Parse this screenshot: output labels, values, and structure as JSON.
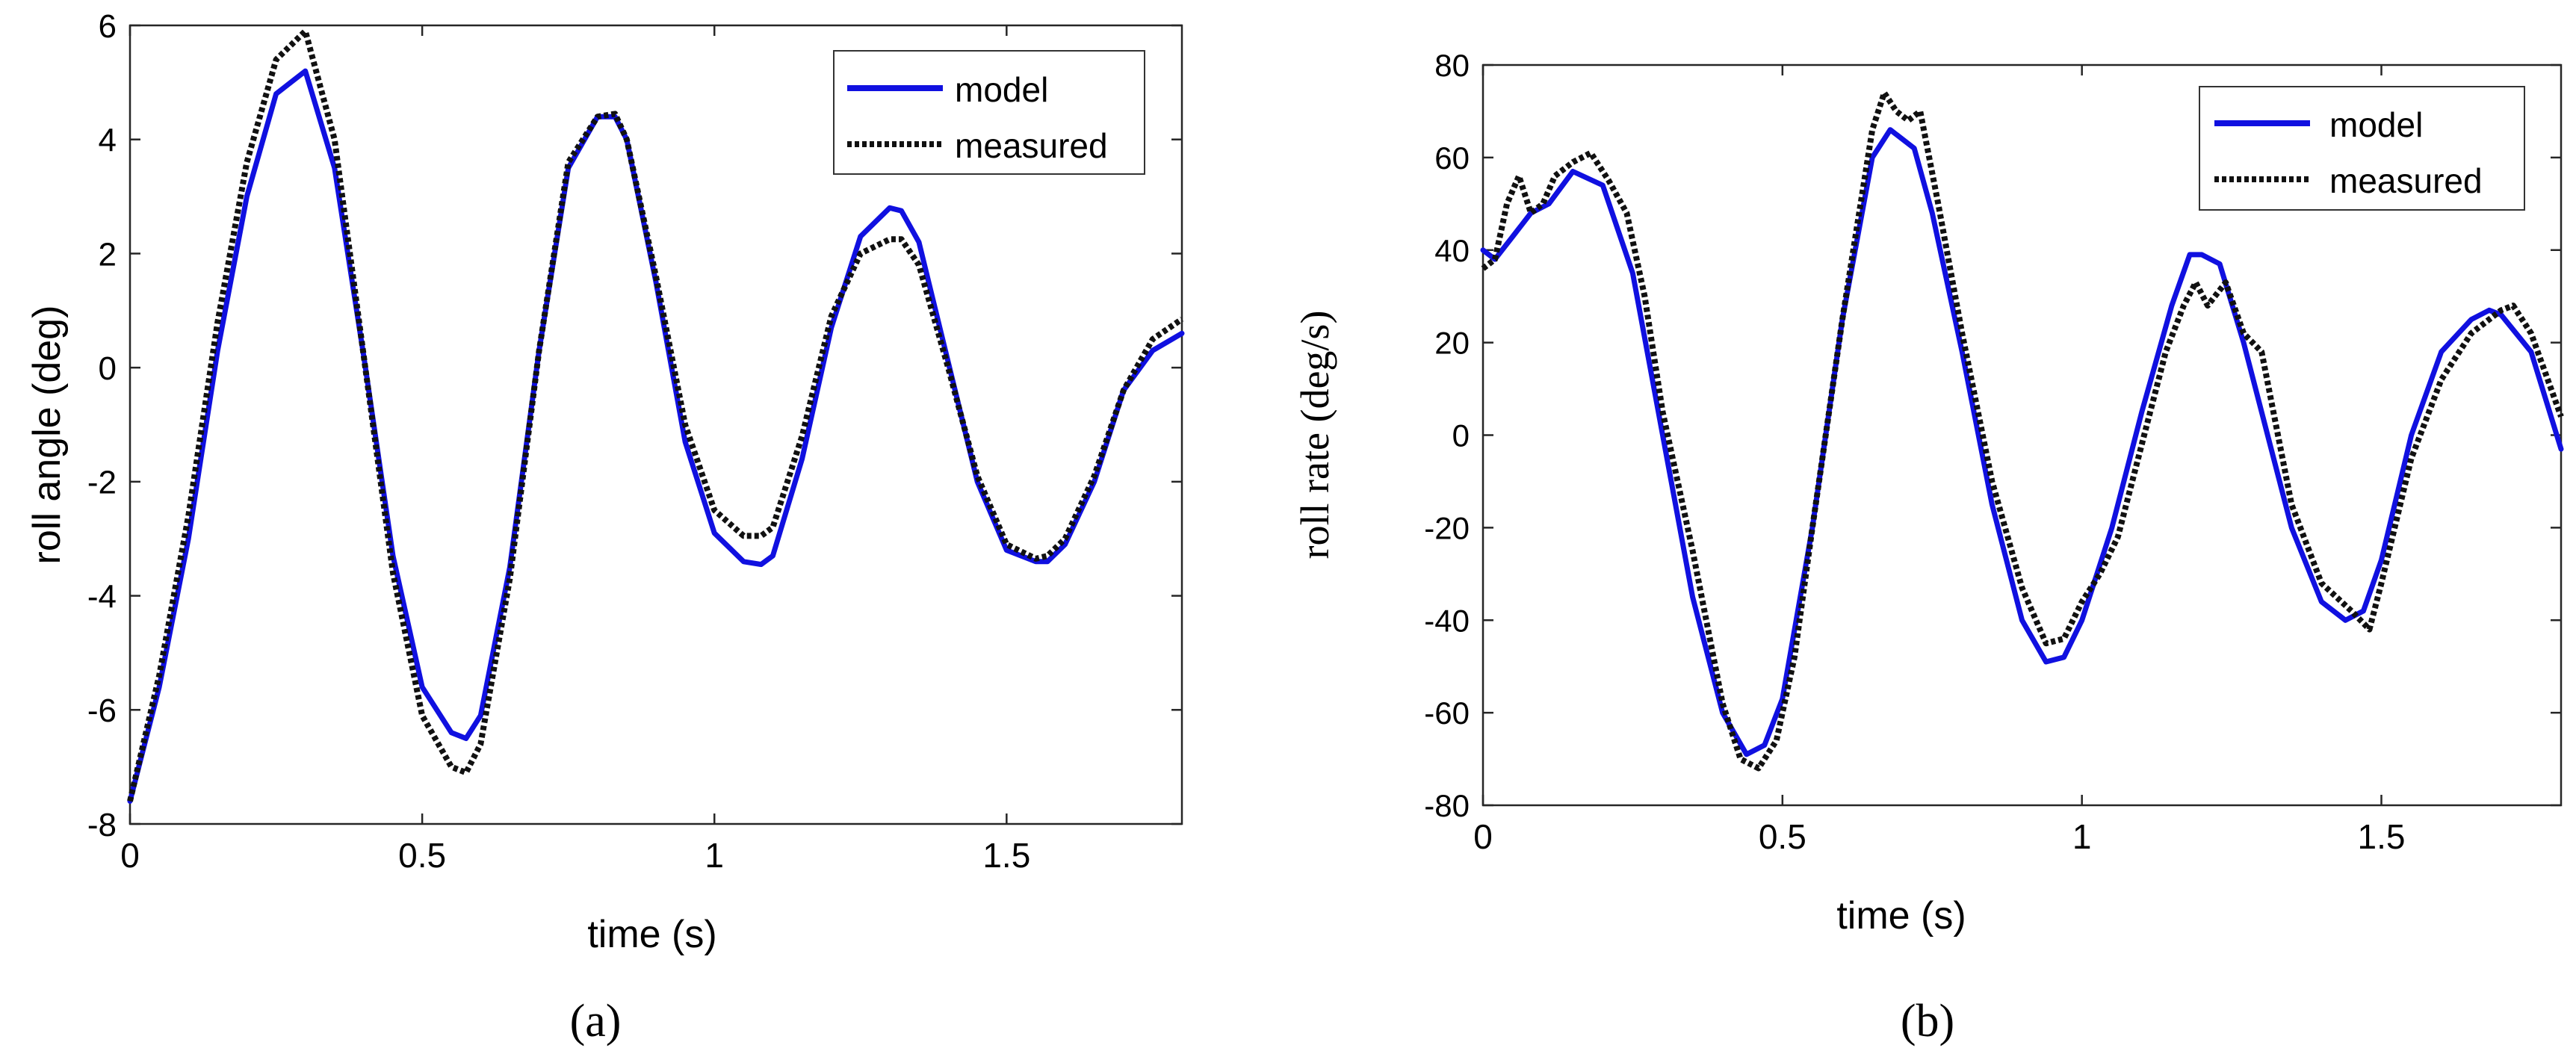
{
  "figure": {
    "panel_a_label": "(a)",
    "panel_b_label": "(b)"
  },
  "chart_data": [
    {
      "type": "line",
      "panel": "a",
      "title": "",
      "xlabel": "time (s)",
      "ylabel": "roll angle (deg)",
      "xlim": [
        0,
        1.8
      ],
      "ylim": [
        -8,
        6
      ],
      "xticks": [
        0,
        0.5,
        1,
        1.5
      ],
      "xtick_labels": [
        "0",
        "0.5",
        "1",
        "1.5"
      ],
      "yticks": [
        -8,
        -6,
        -4,
        -2,
        0,
        2,
        4,
        6
      ],
      "ytick_labels": [
        "-8",
        "-6",
        "-4",
        "-2",
        "0",
        "2",
        "4",
        "6"
      ],
      "grid": false,
      "legend": "top-right",
      "series": [
        {
          "name": "model",
          "color": "#1010e0",
          "style": "solid",
          "x": [
            0,
            0.05,
            0.1,
            0.15,
            0.2,
            0.25,
            0.3,
            0.35,
            0.4,
            0.45,
            0.5,
            0.55,
            0.575,
            0.6,
            0.65,
            0.7,
            0.75,
            0.8,
            0.83,
            0.85,
            0.9,
            0.95,
            1.0,
            1.05,
            1.08,
            1.1,
            1.15,
            1.2,
            1.25,
            1.3,
            1.32,
            1.35,
            1.4,
            1.45,
            1.5,
            1.55,
            1.57,
            1.6,
            1.65,
            1.7,
            1.75,
            1.8
          ],
          "y": [
            -7.6,
            -5.6,
            -3.0,
            0.3,
            3.0,
            4.8,
            5.2,
            3.5,
            0.2,
            -3.3,
            -5.6,
            -6.4,
            -6.5,
            -6.1,
            -3.5,
            0.3,
            3.5,
            4.4,
            4.4,
            4.0,
            1.5,
            -1.3,
            -2.9,
            -3.4,
            -3.45,
            -3.3,
            -1.6,
            0.7,
            2.3,
            2.8,
            2.75,
            2.2,
            0.1,
            -2.0,
            -3.2,
            -3.4,
            -3.4,
            -3.1,
            -2.0,
            -0.4,
            0.3,
            0.6
          ]
        },
        {
          "name": "measured",
          "color": "#111111",
          "style": "dotted",
          "x": [
            0,
            0.05,
            0.1,
            0.15,
            0.2,
            0.25,
            0.3,
            0.35,
            0.4,
            0.45,
            0.5,
            0.55,
            0.575,
            0.6,
            0.65,
            0.7,
            0.75,
            0.8,
            0.83,
            0.85,
            0.9,
            0.95,
            1.0,
            1.05,
            1.08,
            1.1,
            1.15,
            1.2,
            1.25,
            1.3,
            1.32,
            1.35,
            1.4,
            1.45,
            1.5,
            1.55,
            1.57,
            1.6,
            1.65,
            1.7,
            1.75,
            1.8
          ],
          "y": [
            -7.6,
            -5.4,
            -2.6,
            0.8,
            3.6,
            5.4,
            5.9,
            4.0,
            0.2,
            -3.6,
            -6.1,
            -7.0,
            -7.1,
            -6.6,
            -3.7,
            0.3,
            3.6,
            4.4,
            4.45,
            4.0,
            1.6,
            -1.0,
            -2.5,
            -2.95,
            -2.95,
            -2.8,
            -1.2,
            0.9,
            2.0,
            2.25,
            2.25,
            1.8,
            0.0,
            -1.9,
            -3.1,
            -3.35,
            -3.3,
            -3.0,
            -1.9,
            -0.4,
            0.5,
            0.85
          ]
        }
      ]
    },
    {
      "type": "line",
      "panel": "b",
      "title": "",
      "xlabel": "time (s)",
      "ylabel": "roll rate (deg/s)",
      "xlim": [
        0,
        1.8
      ],
      "ylim": [
        -80,
        80
      ],
      "xticks": [
        0,
        0.5,
        1,
        1.5
      ],
      "xtick_labels": [
        "0",
        "0.5",
        "1",
        "1.5"
      ],
      "yticks": [
        -80,
        -60,
        -40,
        -20,
        0,
        20,
        40,
        60,
        80
      ],
      "ytick_labels": [
        "-80",
        "-60",
        "-40",
        "-20",
        "0",
        "20",
        "40",
        "60",
        "80"
      ],
      "grid": false,
      "legend": "top-right",
      "series": [
        {
          "name": "model",
          "color": "#1010e0",
          "style": "solid",
          "x": [
            0,
            0.02,
            0.05,
            0.08,
            0.11,
            0.15,
            0.2,
            0.25,
            0.3,
            0.35,
            0.4,
            0.44,
            0.47,
            0.5,
            0.55,
            0.6,
            0.65,
            0.68,
            0.72,
            0.75,
            0.8,
            0.85,
            0.9,
            0.94,
            0.97,
            1.0,
            1.05,
            1.1,
            1.15,
            1.18,
            1.2,
            1.23,
            1.27,
            1.3,
            1.35,
            1.4,
            1.44,
            1.47,
            1.5,
            1.55,
            1.6,
            1.65,
            1.68,
            1.7,
            1.75,
            1.8
          ],
          "y": [
            40,
            38,
            43,
            48,
            50,
            57,
            54,
            35,
            0,
            -35,
            -60,
            -69,
            -67,
            -57,
            -20,
            25,
            60,
            66,
            62,
            48,
            18,
            -15,
            -40,
            -49,
            -48,
            -40,
            -20,
            5,
            28,
            39,
            39,
            37,
            20,
            5,
            -20,
            -36,
            -40,
            -38,
            -27,
            0,
            18,
            25,
            27,
            26,
            18,
            -3
          ]
        },
        {
          "name": "measured",
          "color": "#111111",
          "style": "dotted",
          "x": [
            0,
            0.02,
            0.04,
            0.06,
            0.08,
            0.1,
            0.12,
            0.15,
            0.18,
            0.21,
            0.24,
            0.27,
            0.3,
            0.35,
            0.4,
            0.43,
            0.46,
            0.49,
            0.52,
            0.55,
            0.6,
            0.65,
            0.67,
            0.69,
            0.71,
            0.73,
            0.76,
            0.8,
            0.85,
            0.9,
            0.94,
            0.97,
            1.0,
            1.03,
            1.06,
            1.1,
            1.14,
            1.17,
            1.19,
            1.21,
            1.24,
            1.27,
            1.3,
            1.35,
            1.4,
            1.45,
            1.48,
            1.5,
            1.55,
            1.6,
            1.65,
            1.7,
            1.72,
            1.75,
            1.8
          ],
          "y": [
            36,
            38,
            50,
            56,
            48,
            50,
            56,
            59,
            61,
            55,
            48,
            30,
            5,
            -25,
            -58,
            -70,
            -72,
            -66,
            -48,
            -20,
            25,
            66,
            74,
            70,
            68,
            70,
            50,
            22,
            -10,
            -33,
            -45,
            -44,
            -36,
            -30,
            -22,
            -2,
            18,
            28,
            33,
            28,
            33,
            22,
            18,
            -15,
            -32,
            -38,
            -42,
            -32,
            -5,
            12,
            22,
            27,
            28,
            22,
            4
          ]
        }
      ]
    }
  ]
}
